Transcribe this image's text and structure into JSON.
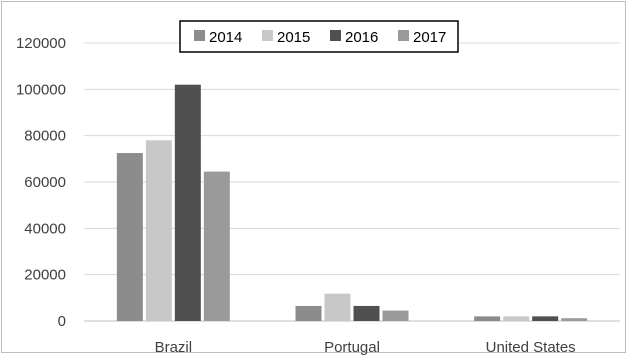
{
  "chart_data": {
    "type": "bar",
    "categories": [
      "Brazil",
      "Portugal",
      "United States"
    ],
    "series": [
      {
        "name": "2014",
        "color": "#8c8c8c",
        "values": [
          72500,
          6500,
          2000
        ]
      },
      {
        "name": "2015",
        "color": "#c8c8c8",
        "values": [
          78000,
          11800,
          2000
        ]
      },
      {
        "name": "2016",
        "color": "#505050",
        "values": [
          102000,
          6500,
          2000
        ]
      },
      {
        "name": "2017",
        "color": "#9a9a9a",
        "values": [
          64500,
          4500,
          1200
        ]
      }
    ],
    "yticks": [
      "0",
      "20000",
      "40000",
      "60000",
      "80000",
      "100000",
      "120000"
    ],
    "ylim": [
      0,
      120000
    ],
    "grid": true,
    "legend_position": "top-center"
  }
}
